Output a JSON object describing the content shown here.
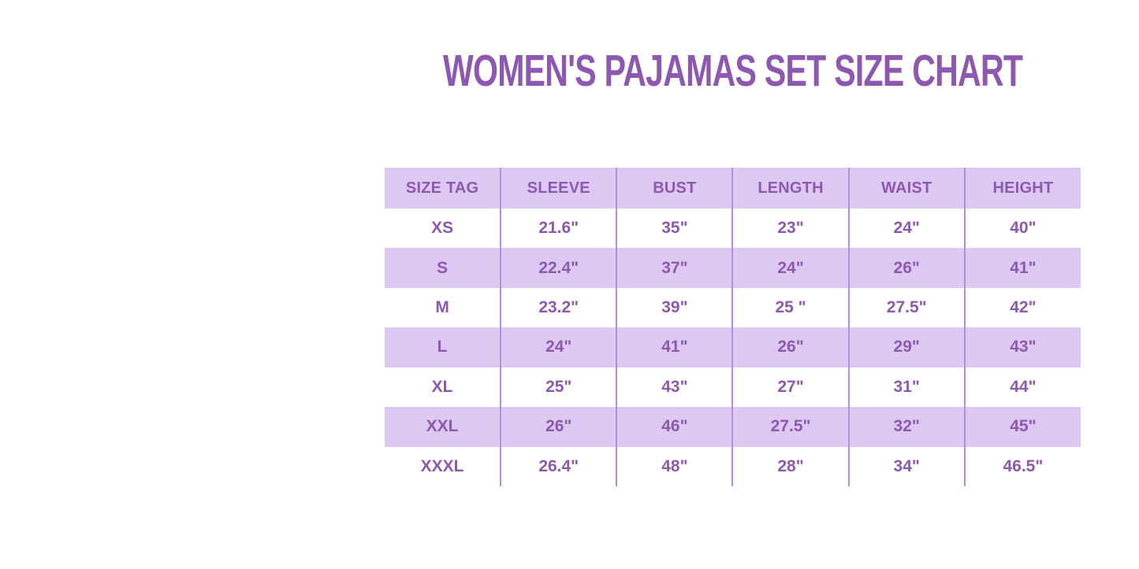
{
  "chart_data": {
    "type": "table",
    "title": "WOMEN'S PAJAMAS SET SIZE CHART",
    "columns": [
      "SIZE TAG",
      "SLEEVE",
      "BUST",
      "LENGTH",
      "WAIST",
      "HEIGHT"
    ],
    "rows": [
      [
        "XS",
        "21.6\"",
        "35\"",
        "23\"",
        "24\"",
        "40\""
      ],
      [
        "S",
        "22.4\"",
        "37\"",
        "24\"",
        "26\"",
        "41\""
      ],
      [
        "M",
        "23.2\"",
        "39\"",
        "25 \"",
        "27.5\"",
        "42\""
      ],
      [
        "L",
        "24\"",
        "41\"",
        "26\"",
        "29\"",
        "43\""
      ],
      [
        "XL",
        "25\"",
        "43\"",
        "27\"",
        "31\"",
        "44\""
      ],
      [
        "XXL",
        "26\"",
        "46\"",
        "27.5\"",
        "32\"",
        "45\""
      ],
      [
        "XXXL",
        "26.4\"",
        "48\"",
        "28\"",
        "34\"",
        "46.5\""
      ]
    ],
    "layout": {
      "legend": "none",
      "grid": "vertical-dividers-only",
      "header_row_shaded": true,
      "alternating_shaded_rows": [
        "S",
        "L",
        "XXL"
      ]
    },
    "colors": {
      "text_purple": "#8c58b0",
      "row_lavender": "#dcc8f0",
      "divider_purple": "#b58ed8",
      "background": "#ffffff"
    }
  }
}
